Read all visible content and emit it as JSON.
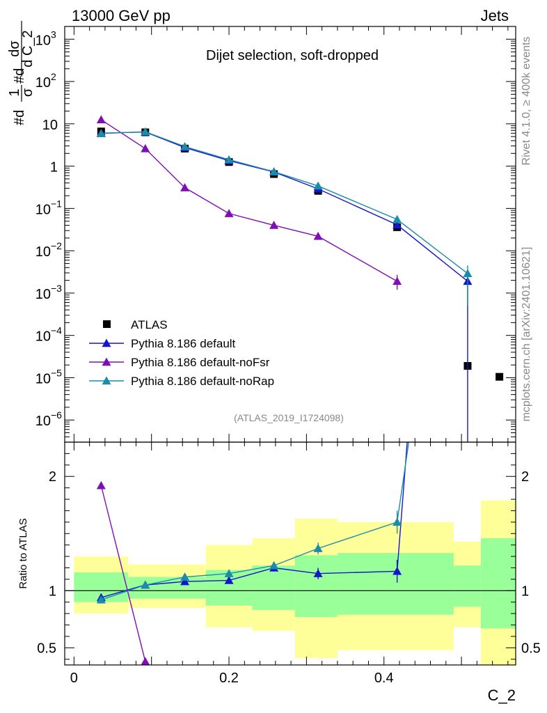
{
  "header": {
    "left": "13000 GeV pp",
    "right": "Jets"
  },
  "side_labels": {
    "rivet": "Rivet 4.1.0, ≥ 400k events",
    "mcplots": "mcplots.cern.ch [arXiv:2401.10621]"
  },
  "colors": {
    "atlas": "#000000",
    "default": "#1515cc",
    "noFsr": "#7d0fb5",
    "noRap": "#1a8caa",
    "band_outer": "#ffff99",
    "band_inner": "#99ff99"
  },
  "chart_data": [
    {
      "type": "line",
      "panel": "main",
      "title": "Dijet selection, soft-dropped",
      "analysis": "(ATLAS_2019_I1724098)",
      "ylabel_parts": [
        "#d",
        "1",
        "σ",
        "#d",
        "dσ",
        "d C_2"
      ],
      "yscale": "log",
      "ylim": [
        3e-07,
        2000
      ],
      "xlim": [
        -0.012,
        0.57
      ],
      "ytick_labels": [
        {
          "v": 1000,
          "base": "10",
          "exp": "3"
        },
        {
          "v": 100,
          "base": "10",
          "exp": "2"
        },
        {
          "v": 10,
          "base": "10",
          "exp": ""
        },
        {
          "v": 1,
          "base": "1",
          "exp": ""
        },
        {
          "v": 0.1,
          "base": "10",
          "exp": "−1"
        },
        {
          "v": 0.01,
          "base": "10",
          "exp": "−2"
        },
        {
          "v": 0.001,
          "base": "10",
          "exp": "−3"
        },
        {
          "v": 0.0001,
          "base": "10",
          "exp": "−4"
        },
        {
          "v": 1e-05,
          "base": "10",
          "exp": "−5"
        },
        {
          "v": 1e-06,
          "base": "10",
          "exp": "−6"
        }
      ],
      "legend": [
        {
          "key": "atlas",
          "label": "ATLAS",
          "marker": "square"
        },
        {
          "key": "default",
          "label": "Pythia 8.186 default",
          "marker": "triangle"
        },
        {
          "key": "noFsr",
          "label": "Pythia 8.186 default-noFsr",
          "marker": "triangle"
        },
        {
          "key": "noRap",
          "label": "Pythia 8.186 default-noRap",
          "marker": "triangle"
        }
      ],
      "series": [
        {
          "key": "atlas",
          "name": "ATLAS",
          "x": [
            0.035,
            0.092,
            0.143,
            0.2,
            0.258,
            0.315,
            0.417,
            0.508,
            0.549
          ],
          "y": [
            6.6,
            6.3,
            2.6,
            1.25,
            0.65,
            0.26,
            0.036,
            1.9e-05,
            1.05e-05
          ]
        },
        {
          "key": "default",
          "name": "Pythia 8.186 default",
          "x": [
            0.035,
            0.092,
            0.143,
            0.2,
            0.258,
            0.315,
            0.417,
            0.508
          ],
          "y": [
            6.0,
            6.4,
            2.75,
            1.35,
            0.73,
            0.29,
            0.041,
            0.0019
          ],
          "err_lo": [
            0,
            0,
            0,
            0,
            0,
            0,
            0,
            0.0019
          ],
          "err_hi": [
            0,
            0,
            0,
            0,
            0,
            0,
            0,
            0.0009
          ]
        },
        {
          "key": "noFsr",
          "name": "Pythia 8.186 default-noFsr",
          "x": [
            0.035,
            0.092,
            0.143,
            0.2,
            0.258,
            0.315,
            0.417
          ],
          "y": [
            12.5,
            2.6,
            0.31,
            0.076,
            0.04,
            0.022,
            0.0019
          ],
          "err_lo": [
            0,
            0,
            0,
            0,
            0,
            0.003,
            0.0007
          ],
          "err_hi": [
            0,
            0,
            0,
            0,
            0,
            0.003,
            0.0008
          ]
        },
        {
          "key": "noRap",
          "name": "Pythia 8.186 default-noRap",
          "x": [
            0.035,
            0.092,
            0.143,
            0.2,
            0.258,
            0.315,
            0.417,
            0.508
          ],
          "y": [
            5.9,
            6.5,
            2.9,
            1.42,
            0.74,
            0.34,
            0.055,
            0.0029
          ],
          "err_lo": [
            0,
            0,
            0,
            0,
            0,
            0,
            0,
            0.0024
          ],
          "err_hi": [
            0,
            0,
            0,
            0,
            0,
            0,
            0,
            0.0016
          ]
        }
      ]
    },
    {
      "type": "line",
      "panel": "ratio",
      "ylabel": "Ratio to ATLAS",
      "xlabel": "C_2",
      "xlim": [
        -0.012,
        0.57
      ],
      "ylim": [
        0.35,
        2.3
      ],
      "xticks": [
        0,
        0.2,
        0.4
      ],
      "xtick_labels": [
        "0",
        "0.2",
        "0.4"
      ],
      "yticks": [
        0.5,
        1,
        2
      ],
      "ytick_labels": [
        "0.5",
        "1",
        "2"
      ],
      "bands": [
        {
          "x0": 0.0,
          "x1": 0.07,
          "outer": [
            0.8,
            1.3
          ],
          "inner": [
            0.9,
            1.16
          ]
        },
        {
          "x0": 0.07,
          "x1": 0.17,
          "outer": [
            0.85,
            1.23
          ],
          "inner": [
            0.93,
            1.12
          ]
        },
        {
          "x0": 0.17,
          "x1": 0.23,
          "outer": [
            0.68,
            1.4
          ],
          "inner": [
            0.87,
            1.18
          ]
        },
        {
          "x0": 0.23,
          "x1": 0.285,
          "outer": [
            0.65,
            1.46
          ],
          "inner": [
            0.83,
            1.22
          ]
        },
        {
          "x0": 0.285,
          "x1": 0.34,
          "outer": [
            0.41,
            1.63
          ],
          "inner": [
            0.77,
            1.31
          ]
        },
        {
          "x0": 0.34,
          "x1": 0.49,
          "outer": [
            0.48,
            1.6
          ],
          "inner": [
            0.79,
            1.33
          ]
        },
        {
          "x0": 0.49,
          "x1": 0.525,
          "outer": [
            0.68,
            1.43
          ],
          "inner": [
            0.86,
            1.22
          ]
        },
        {
          "x0": 0.525,
          "x1": 0.57,
          "outer": [
            0.2,
            1.79
          ],
          "inner": [
            0.67,
            1.46
          ]
        }
      ],
      "series": [
        {
          "key": "default",
          "name": "Pythia 8.186 default",
          "x": [
            0.035,
            0.092,
            0.143,
            0.2,
            0.258,
            0.315,
            0.417,
            0.43
          ],
          "y": [
            0.94,
            1.05,
            1.08,
            1.09,
            1.2,
            1.15,
            1.17,
            2.3
          ],
          "err": [
            0,
            0,
            0,
            0,
            0.03,
            0.05,
            0.1,
            0
          ],
          "marker": [
            true,
            true,
            true,
            true,
            true,
            true,
            true,
            false
          ]
        },
        {
          "key": "noFsr",
          "name": "Pythia 8.186 default-noFsr",
          "x": [
            0.035,
            0.092
          ],
          "y": [
            1.92,
            0.38
          ],
          "err": [
            0,
            0
          ],
          "marker": [
            true,
            true
          ]
        },
        {
          "key": "noRap",
          "name": "Pythia 8.186 default-noRap",
          "x": [
            0.035,
            0.092,
            0.143,
            0.2,
            0.258,
            0.315,
            0.417,
            0.432
          ],
          "y": [
            0.92,
            1.05,
            1.12,
            1.15,
            1.22,
            1.37,
            1.6,
            2.3
          ],
          "err": [
            0,
            0,
            0,
            0,
            0.03,
            0.05,
            0.1,
            0
          ],
          "marker": [
            true,
            true,
            true,
            true,
            true,
            true,
            true,
            false
          ]
        }
      ]
    }
  ]
}
